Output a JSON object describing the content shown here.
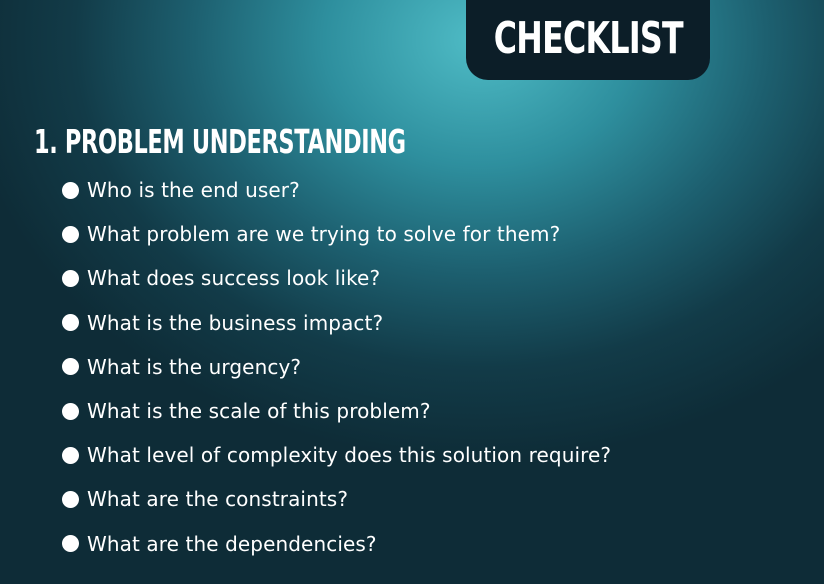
{
  "header": {
    "tag_label": "CHECKLIST"
  },
  "section": {
    "title": "1. PROBLEM UNDERSTANDING",
    "items": [
      "Who is the end user?",
      "What problem are we trying to solve for them?",
      "What does success look like?",
      "What is the business impact?",
      "What is the urgency?",
      "What is the scale of this problem?",
      "What level of complexity does this solution require?",
      "What are the constraints?",
      "What are the dependencies?"
    ]
  }
}
